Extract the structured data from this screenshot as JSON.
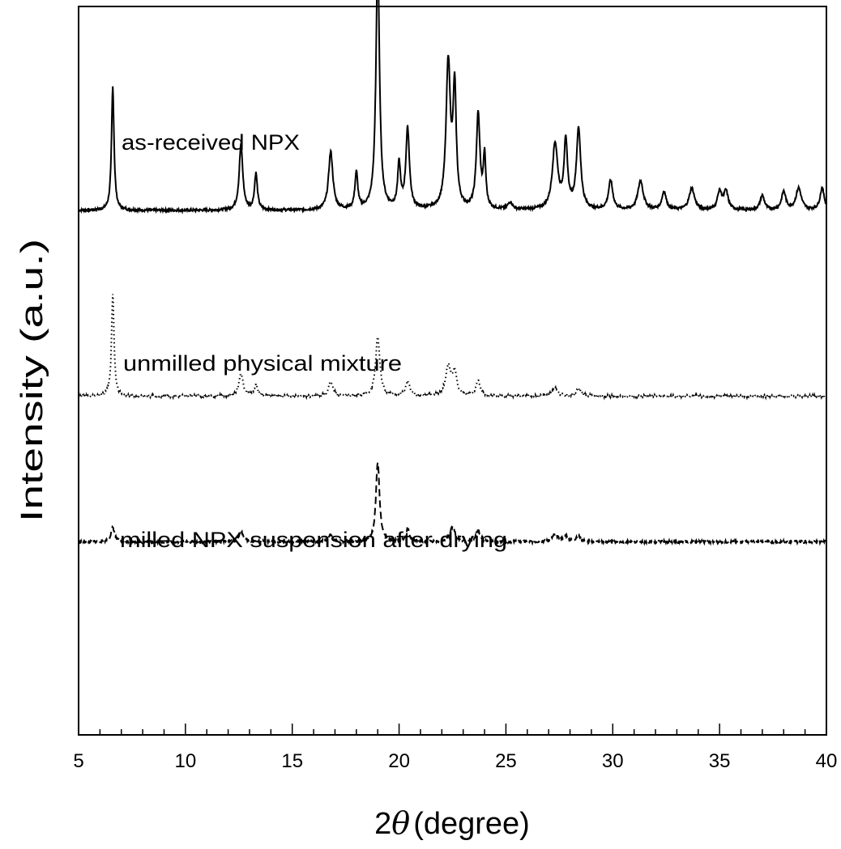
{
  "chart_data": {
    "type": "line",
    "title": "",
    "xlabel_prefix": "2",
    "xlabel_symbol": "θ",
    "xlabel_suffix": "(degree)",
    "ylabel": "Intensity (a.u.)",
    "xlim": [
      5,
      40
    ],
    "ylim": [
      0,
      100
    ],
    "xticks": [
      5,
      10,
      15,
      20,
      25,
      30,
      35,
      40
    ],
    "xtick_labels": [
      "5",
      "10",
      "15",
      "20",
      "25",
      "30",
      "35",
      "40"
    ],
    "yticks_shown": false,
    "grid": false,
    "legend": "none",
    "series": [
      {
        "name": "as-received NPX",
        "style": "solid",
        "baseline": 72,
        "peaks": [
          [
            6.6,
            17,
            0.07
          ],
          [
            12.6,
            9,
            0.1
          ],
          [
            13.3,
            5,
            0.08
          ],
          [
            16.8,
            8,
            0.12
          ],
          [
            18.0,
            5,
            0.08
          ],
          [
            19.0,
            34,
            0.1
          ],
          [
            20.0,
            6,
            0.08
          ],
          [
            20.4,
            11,
            0.1
          ],
          [
            22.3,
            20,
            0.12
          ],
          [
            22.6,
            16,
            0.09
          ],
          [
            23.7,
            13,
            0.1
          ],
          [
            24.0,
            7,
            0.07
          ],
          [
            25.2,
            1,
            0.12
          ],
          [
            27.3,
            9,
            0.15
          ],
          [
            27.8,
            9,
            0.1
          ],
          [
            28.4,
            11,
            0.12
          ],
          [
            29.9,
            4,
            0.12
          ],
          [
            31.3,
            4,
            0.15
          ],
          [
            32.4,
            2.5,
            0.12
          ],
          [
            33.7,
            3,
            0.15
          ],
          [
            35.0,
            2.5,
            0.12
          ],
          [
            35.3,
            2.5,
            0.12
          ],
          [
            37.0,
            2,
            0.12
          ],
          [
            38.0,
            2.5,
            0.12
          ],
          [
            38.7,
            3,
            0.15
          ],
          [
            39.8,
            3,
            0.12
          ]
        ]
      },
      {
        "name": "unmilled physical mixture",
        "style": "dotted",
        "baseline": 46.5,
        "peaks": [
          [
            6.6,
            14,
            0.07
          ],
          [
            12.6,
            3,
            0.12
          ],
          [
            13.3,
            1.5,
            0.1
          ],
          [
            16.8,
            2,
            0.12
          ],
          [
            19.0,
            8,
            0.12
          ],
          [
            20.4,
            2,
            0.12
          ],
          [
            22.3,
            4,
            0.15
          ],
          [
            22.6,
            3,
            0.12
          ],
          [
            23.7,
            2,
            0.12
          ],
          [
            27.3,
            1,
            0.15
          ],
          [
            28.4,
            1,
            0.15
          ]
        ]
      },
      {
        "name": "milled NPX suspension after drying",
        "style": "dashed",
        "baseline": 26.5,
        "peaks": [
          [
            6.6,
            2,
            0.1
          ],
          [
            12.6,
            1.5,
            0.12
          ],
          [
            16.8,
            1,
            0.12
          ],
          [
            19.0,
            11,
            0.1
          ],
          [
            20.4,
            1.8,
            0.1
          ],
          [
            22.5,
            2,
            0.15
          ],
          [
            23.7,
            1.5,
            0.12
          ],
          [
            27.3,
            1,
            0.15
          ],
          [
            27.8,
            0.8,
            0.12
          ],
          [
            28.4,
            0.8,
            0.12
          ]
        ]
      }
    ]
  }
}
